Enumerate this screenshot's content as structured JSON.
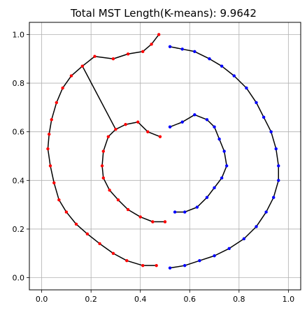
{
  "chart_data": {
    "type": "scatter",
    "title": "Total MST Length(K-means): 9.9642",
    "xlabel": "",
    "ylabel": "",
    "xlim": [
      -0.05,
      1.05
    ],
    "ylim": [
      -0.05,
      1.05
    ],
    "grid": true,
    "xticks": [
      0.0,
      0.2,
      0.4,
      0.6,
      0.8,
      1.0
    ],
    "yticks": [
      0.0,
      0.2,
      0.4,
      0.6,
      0.8,
      1.0
    ],
    "xtick_labels": [
      "0.0",
      "0.2",
      "0.4",
      "0.6",
      "0.8",
      "1.0"
    ],
    "ytick_labels": [
      "0.0",
      "0.2",
      "0.4",
      "0.6",
      "0.8",
      "1.0"
    ],
    "mst_edge_color": "#000000",
    "series": [
      {
        "color": "#ff0000",
        "points": [
          [
            0.475,
            1.0
          ],
          [
            0.445,
            0.96
          ],
          [
            0.41,
            0.93
          ],
          [
            0.35,
            0.92
          ],
          [
            0.29,
            0.9
          ],
          [
            0.215,
            0.91
          ],
          [
            0.165,
            0.87
          ],
          [
            0.12,
            0.83
          ],
          [
            0.085,
            0.78
          ],
          [
            0.06,
            0.72
          ],
          [
            0.04,
            0.65
          ],
          [
            0.03,
            0.59
          ],
          [
            0.025,
            0.53
          ],
          [
            0.035,
            0.46
          ],
          [
            0.05,
            0.39
          ],
          [
            0.07,
            0.32
          ],
          [
            0.1,
            0.27
          ],
          [
            0.14,
            0.22
          ],
          [
            0.185,
            0.18
          ],
          [
            0.235,
            0.14
          ],
          [
            0.29,
            0.1
          ],
          [
            0.345,
            0.07
          ],
          [
            0.41,
            0.05
          ],
          [
            0.465,
            0.05
          ],
          [
            0.48,
            0.58
          ],
          [
            0.43,
            0.6
          ],
          [
            0.39,
            0.64
          ],
          [
            0.34,
            0.63
          ],
          [
            0.3,
            0.61
          ],
          [
            0.27,
            0.58
          ],
          [
            0.25,
            0.52
          ],
          [
            0.245,
            0.46
          ],
          [
            0.25,
            0.41
          ],
          [
            0.275,
            0.36
          ],
          [
            0.31,
            0.32
          ],
          [
            0.35,
            0.28
          ],
          [
            0.4,
            0.25
          ],
          [
            0.45,
            0.23
          ],
          [
            0.5,
            0.23
          ]
        ],
        "edges": [
          [
            0,
            1
          ],
          [
            1,
            2
          ],
          [
            2,
            3
          ],
          [
            3,
            4
          ],
          [
            4,
            5
          ],
          [
            5,
            6
          ],
          [
            6,
            7
          ],
          [
            7,
            8
          ],
          [
            8,
            9
          ],
          [
            9,
            10
          ],
          [
            10,
            11
          ],
          [
            11,
            12
          ],
          [
            12,
            13
          ],
          [
            13,
            14
          ],
          [
            14,
            15
          ],
          [
            15,
            16
          ],
          [
            16,
            17
          ],
          [
            17,
            18
          ],
          [
            18,
            19
          ],
          [
            19,
            20
          ],
          [
            20,
            21
          ],
          [
            21,
            22
          ],
          [
            22,
            23
          ],
          [
            24,
            25
          ],
          [
            25,
            26
          ],
          [
            26,
            27
          ],
          [
            27,
            28
          ],
          [
            28,
            29
          ],
          [
            29,
            30
          ],
          [
            30,
            31
          ],
          [
            31,
            32
          ],
          [
            32,
            33
          ],
          [
            33,
            34
          ],
          [
            34,
            35
          ],
          [
            35,
            36
          ],
          [
            36,
            37
          ],
          [
            37,
            38
          ],
          [
            6,
            28
          ]
        ]
      },
      {
        "color": "#0000ff",
        "points": [
          [
            0.52,
            0.95
          ],
          [
            0.57,
            0.94
          ],
          [
            0.62,
            0.93
          ],
          [
            0.68,
            0.9
          ],
          [
            0.73,
            0.87
          ],
          [
            0.78,
            0.83
          ],
          [
            0.83,
            0.78
          ],
          [
            0.87,
            0.72
          ],
          [
            0.9,
            0.66
          ],
          [
            0.93,
            0.6
          ],
          [
            0.95,
            0.53
          ],
          [
            0.96,
            0.46
          ],
          [
            0.96,
            0.4
          ],
          [
            0.94,
            0.33
          ],
          [
            0.91,
            0.27
          ],
          [
            0.87,
            0.21
          ],
          [
            0.82,
            0.16
          ],
          [
            0.76,
            0.12
          ],
          [
            0.7,
            0.09
          ],
          [
            0.64,
            0.07
          ],
          [
            0.58,
            0.05
          ],
          [
            0.52,
            0.04
          ],
          [
            0.52,
            0.62
          ],
          [
            0.57,
            0.64
          ],
          [
            0.62,
            0.67
          ],
          [
            0.67,
            0.65
          ],
          [
            0.7,
            0.62
          ],
          [
            0.72,
            0.57
          ],
          [
            0.74,
            0.52
          ],
          [
            0.75,
            0.46
          ],
          [
            0.73,
            0.41
          ],
          [
            0.7,
            0.37
          ],
          [
            0.67,
            0.33
          ],
          [
            0.63,
            0.29
          ],
          [
            0.58,
            0.27
          ],
          [
            0.54,
            0.27
          ]
        ],
        "edges": [
          [
            0,
            1
          ],
          [
            1,
            2
          ],
          [
            2,
            3
          ],
          [
            3,
            4
          ],
          [
            4,
            5
          ],
          [
            5,
            6
          ],
          [
            6,
            7
          ],
          [
            7,
            8
          ],
          [
            8,
            9
          ],
          [
            9,
            10
          ],
          [
            10,
            11
          ],
          [
            11,
            12
          ],
          [
            12,
            13
          ],
          [
            13,
            14
          ],
          [
            14,
            15
          ],
          [
            15,
            16
          ],
          [
            16,
            17
          ],
          [
            17,
            18
          ],
          [
            18,
            19
          ],
          [
            19,
            20
          ],
          [
            20,
            21
          ],
          [
            22,
            23
          ],
          [
            23,
            24
          ],
          [
            24,
            25
          ],
          [
            25,
            26
          ],
          [
            26,
            27
          ],
          [
            27,
            28
          ],
          [
            28,
            29
          ],
          [
            29,
            30
          ],
          [
            30,
            31
          ],
          [
            31,
            32
          ],
          [
            32,
            33
          ],
          [
            33,
            34
          ],
          [
            34,
            35
          ]
        ]
      }
    ]
  }
}
